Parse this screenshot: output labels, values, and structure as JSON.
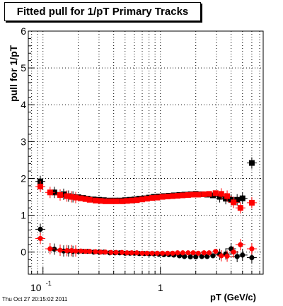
{
  "title": "Fitted pull for 1/pT  Primary Tracks",
  "datestamp": "Thu Oct 27 20:15:02 2011",
  "chart_data": {
    "type": "scatter",
    "xlabel": "pT (GeV/c)",
    "ylabel": "pull for 1/pT",
    "x_scale": "log",
    "xlim": [
      0.075,
      7.5
    ],
    "ylim": [
      -0.6,
      6
    ],
    "y_ticks": [
      "0",
      "1",
      "2",
      "3",
      "4",
      "5",
      "6"
    ],
    "x_ticks": [
      {
        "value": 0.1,
        "base": "10",
        "exp": "-1"
      },
      {
        "value": 1,
        "label": "1"
      }
    ],
    "grid": true,
    "colors": {
      "black_series": "#000000",
      "red_series": "#ff0000"
    },
    "series": [
      {
        "color": "#000000",
        "marker": "square",
        "x": [
          0.095,
          0.125,
          0.15,
          0.165,
          0.18,
          0.2,
          0.22,
          0.24,
          0.27,
          0.3,
          0.33,
          0.37,
          0.41,
          0.45,
          0.5,
          0.55,
          0.6,
          0.66,
          0.73,
          0.8,
          0.88,
          0.97,
          1.07,
          1.18,
          1.3,
          1.45,
          1.6,
          1.8,
          2.0,
          2.25,
          2.5,
          2.8,
          3.2,
          3.6,
          4.0,
          4.5,
          5.0,
          6.0
        ],
        "y": [
          1.92,
          1.62,
          1.57,
          1.52,
          1.5,
          1.49,
          1.47,
          1.45,
          1.43,
          1.42,
          1.41,
          1.4,
          1.4,
          1.4,
          1.41,
          1.42,
          1.43,
          1.45,
          1.46,
          1.48,
          1.5,
          1.51,
          1.52,
          1.53,
          1.54,
          1.55,
          1.56,
          1.57,
          1.58,
          1.57,
          1.56,
          1.54,
          1.5,
          1.45,
          1.42,
          1.42,
          1.46,
          2.42
        ]
      },
      {
        "color": "#000000",
        "marker": "circle",
        "x": [
          0.095,
          0.125,
          0.15,
          0.165,
          0.18,
          0.2,
          0.22,
          0.24,
          0.27,
          0.3,
          0.33,
          0.37,
          0.41,
          0.45,
          0.5,
          0.55,
          0.6,
          0.66,
          0.73,
          0.8,
          0.88,
          0.97,
          1.07,
          1.18,
          1.3,
          1.45,
          1.6,
          1.8,
          2.0,
          2.25,
          2.5,
          2.8,
          3.2,
          3.6,
          4.0,
          4.5,
          5.0,
          6.0
        ],
        "y": [
          0.62,
          0.08,
          0.03,
          0.03,
          0.02,
          0.02,
          0.02,
          0.02,
          0.0,
          0.0,
          0.0,
          -0.02,
          -0.02,
          -0.02,
          -0.03,
          -0.03,
          -0.03,
          -0.04,
          -0.04,
          -0.05,
          -0.05,
          -0.06,
          -0.07,
          -0.07,
          -0.08,
          -0.1,
          -0.12,
          -0.13,
          -0.13,
          -0.12,
          -0.12,
          -0.1,
          -0.06,
          -0.05,
          0.09,
          -0.12,
          -0.08,
          -0.15
        ]
      },
      {
        "color": "#ff0000",
        "marker": "square",
        "x": [
          0.095,
          0.115,
          0.14,
          0.16,
          0.175,
          0.19,
          0.21,
          0.23,
          0.25,
          0.28,
          0.31,
          0.34,
          0.38,
          0.42,
          0.47,
          0.52,
          0.57,
          0.63,
          0.7,
          0.77,
          0.85,
          0.94,
          1.04,
          1.15,
          1.27,
          1.4,
          1.55,
          1.72,
          1.9,
          2.1,
          2.35,
          2.6,
          2.95,
          3.3,
          3.7,
          4.2,
          4.8,
          6.0
        ],
        "y": [
          1.78,
          1.62,
          1.55,
          1.52,
          1.5,
          1.48,
          1.46,
          1.44,
          1.42,
          1.4,
          1.39,
          1.38,
          1.38,
          1.38,
          1.38,
          1.39,
          1.4,
          1.41,
          1.43,
          1.45,
          1.47,
          1.48,
          1.5,
          1.51,
          1.52,
          1.53,
          1.54,
          1.55,
          1.56,
          1.56,
          1.57,
          1.58,
          1.6,
          1.58,
          1.52,
          1.35,
          1.2,
          1.34
        ]
      },
      {
        "color": "#ff0000",
        "marker": "circle",
        "x": [
          0.095,
          0.115,
          0.14,
          0.16,
          0.175,
          0.19,
          0.21,
          0.23,
          0.25,
          0.28,
          0.31,
          0.34,
          0.38,
          0.42,
          0.47,
          0.52,
          0.57,
          0.63,
          0.7,
          0.77,
          0.85,
          0.94,
          1.04,
          1.15,
          1.27,
          1.4,
          1.55,
          1.72,
          1.9,
          2.1,
          2.35,
          2.6,
          2.95,
          3.3,
          3.7,
          4.2,
          4.8,
          6.0
        ],
        "y": [
          0.37,
          0.09,
          0.05,
          0.04,
          0.04,
          0.03,
          0.03,
          0.02,
          0.02,
          0.01,
          0.0,
          0.0,
          -0.01,
          -0.01,
          -0.01,
          -0.02,
          -0.02,
          -0.02,
          -0.03,
          -0.03,
          -0.03,
          -0.03,
          -0.03,
          -0.03,
          -0.03,
          -0.02,
          -0.02,
          -0.02,
          -0.02,
          -0.03,
          -0.02,
          -0.02,
          0.02,
          -0.1,
          -0.11,
          0.0,
          0.2,
          0.09
        ]
      }
    ]
  }
}
